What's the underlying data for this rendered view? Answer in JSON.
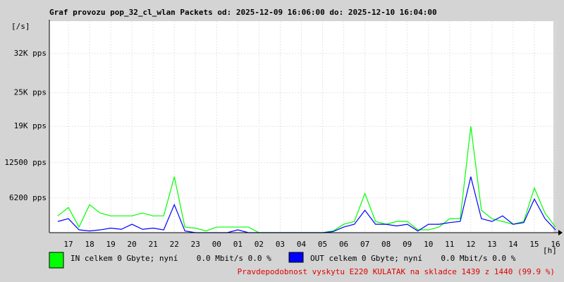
{
  "chart_data": {
    "type": "line",
    "title": "Graf provozu pop_32_cl_wlan Packets od: 2025-12-09 16:06:00 do: 2025-12-10 16:04:00",
    "y_unit": "[/s]",
    "x_unit": "[h]",
    "footer": "Pravdepodobnost vyskytu E220 KULATAK na skladce 1439 z 1440 (99.9 %)",
    "xlim": [
      16.1,
      40.067
    ],
    "xticks": [
      {
        "value": 17,
        "label": "17"
      },
      {
        "value": 18,
        "label": "18"
      },
      {
        "value": 19,
        "label": "19"
      },
      {
        "value": 20,
        "label": "20"
      },
      {
        "value": 21,
        "label": "21"
      },
      {
        "value": 22,
        "label": "22"
      },
      {
        "value": 23,
        "label": "23"
      },
      {
        "value": 24,
        "label": "00"
      },
      {
        "value": 25,
        "label": "01"
      },
      {
        "value": 26,
        "label": "02"
      },
      {
        "value": 27,
        "label": "03"
      },
      {
        "value": 28,
        "label": "04"
      },
      {
        "value": 29,
        "label": "05"
      },
      {
        "value": 30,
        "label": "06"
      },
      {
        "value": 31,
        "label": "07"
      },
      {
        "value": 32,
        "label": "08"
      },
      {
        "value": 33,
        "label": "09"
      },
      {
        "value": 34,
        "label": "10"
      },
      {
        "value": 35,
        "label": "11"
      },
      {
        "value": 36,
        "label": "12"
      },
      {
        "value": 37,
        "label": "13"
      },
      {
        "value": 38,
        "label": "14"
      },
      {
        "value": 39,
        "label": "15"
      },
      {
        "value": 40,
        "label": "16"
      }
    ],
    "ylim": [
      0,
      37800
    ],
    "yticks": [
      {
        "value": 6200,
        "label": "6200 pps"
      },
      {
        "value": 12500,
        "label": "12500 pps"
      },
      {
        "value": 19000,
        "label": "19K pps"
      },
      {
        "value": 25000,
        "label": "25K pps"
      },
      {
        "value": 32000,
        "label": "32K pps"
      }
    ],
    "grid": true,
    "x": [
      16.5,
      17,
      17.5,
      18,
      18.5,
      19,
      19.5,
      20,
      20.5,
      21,
      21.5,
      22,
      22.5,
      23,
      23.5,
      24,
      24.5,
      25,
      25.5,
      26,
      26.5,
      27,
      27.5,
      28,
      28.5,
      29,
      29.5,
      30,
      30.5,
      31,
      31.5,
      32,
      32.5,
      33,
      33.5,
      34,
      34.5,
      35,
      35.5,
      36,
      36.5,
      37,
      37.5,
      38,
      38.5,
      39,
      39.5,
      40
    ],
    "series": [
      {
        "name": "IN celkem 0 Gbyte; nyní    0.0 Mbit/s 0.0 %",
        "color": "#00ff00",
        "values": [
          3000,
          4500,
          1000,
          5000,
          3500,
          3000,
          3000,
          3000,
          3500,
          3000,
          3000,
          10000,
          1000,
          800,
          300,
          1000,
          1000,
          1000,
          1000,
          0,
          0,
          0,
          0,
          0,
          0,
          0,
          300,
          1500,
          2000,
          7000,
          2000,
          1500,
          2000,
          2000,
          500,
          500,
          1000,
          2500,
          2500,
          19000,
          4000,
          2500,
          2000,
          1500,
          2000,
          8000,
          3500,
          1000
        ]
      },
      {
        "name": "OUT celkem 0 Gbyte; nyní    0.0 Mbit/s 0.0 %",
        "color": "#0000ff",
        "values": [
          2000,
          2500,
          500,
          300,
          500,
          800,
          600,
          1500,
          600,
          800,
          500,
          5000,
          300,
          0,
          0,
          0,
          0,
          500,
          0,
          0,
          0,
          0,
          0,
          0,
          0,
          0,
          200,
          1000,
          1500,
          4000,
          1500,
          1500,
          1200,
          1500,
          300,
          1500,
          1500,
          1800,
          2000,
          10000,
          2500,
          2000,
          3000,
          1500,
          1800,
          6000,
          2500,
          500
        ]
      }
    ]
  }
}
